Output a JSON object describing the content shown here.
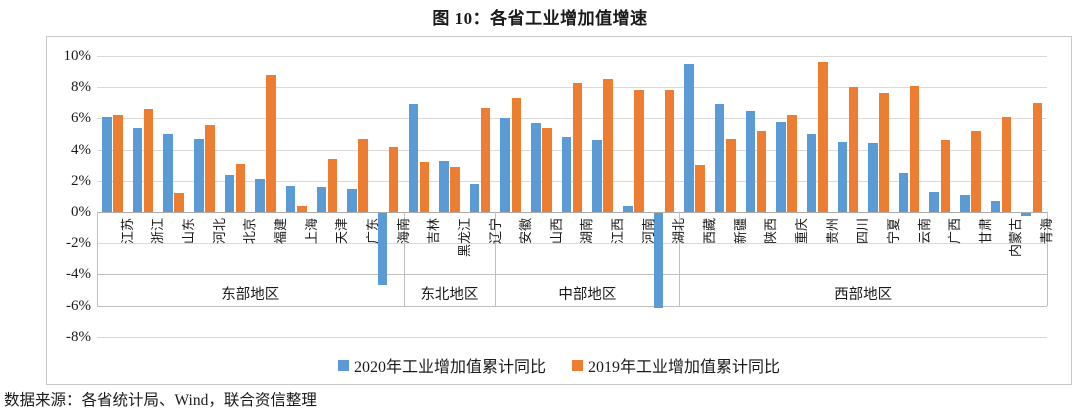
{
  "title": "图 10：各省工业增加值增速",
  "source": "数据来源：各省统计局、Wind，联合资信整理",
  "colors": {
    "series_2020": "#5B9BD5",
    "series_2019": "#ED7D31",
    "gridline": "#d9d9d9",
    "axis_line": "#ababab",
    "band_line": "#bfbfbf"
  },
  "chart_data": {
    "type": "bar",
    "title": "图 10：各省工业增加值增速",
    "xlabel": "",
    "ylabel": "",
    "ylim": [
      -8,
      10
    ],
    "grid": true,
    "legend_position": "bottom",
    "y_ticks": [
      "10%",
      "8%",
      "6%",
      "4%",
      "2%",
      "0%",
      "-2%",
      "-4%",
      "-6%",
      "-8%"
    ],
    "y_tick_values": [
      10,
      8,
      6,
      4,
      2,
      0,
      -2,
      -4,
      -6,
      -8
    ],
    "categories": [
      "江苏",
      "浙江",
      "山东",
      "河北",
      "北京",
      "福建",
      "上海",
      "天津",
      "广东",
      "海南",
      "吉林",
      "黑龙江",
      "辽宁",
      "安徽",
      "山西",
      "湖南",
      "江西",
      "河南",
      "湖北",
      "西藏",
      "新疆",
      "陕西",
      "重庆",
      "贵州",
      "四川",
      "宁夏",
      "云南",
      "广西",
      "甘肃",
      "内蒙古",
      "青海"
    ],
    "regions": [
      {
        "label": "东部地区",
        "count": 10
      },
      {
        "label": "东北地区",
        "count": 3
      },
      {
        "label": "中部地区",
        "count": 6
      },
      {
        "label": "西部地区",
        "count": 12
      }
    ],
    "series": [
      {
        "name": "2020年工业增加值累计同比",
        "color": "#5B9BD5",
        "values": [
          6.1,
          5.4,
          5.0,
          4.7,
          2.4,
          2.1,
          1.7,
          1.6,
          1.5,
          -4.6,
          6.9,
          3.3,
          1.8,
          6.0,
          5.7,
          4.8,
          4.6,
          0.4,
          -6.1,
          9.5,
          6.9,
          6.5,
          5.8,
          5.0,
          4.5,
          4.4,
          2.5,
          1.3,
          1.1,
          0.7,
          -0.2
        ]
      },
      {
        "name": "2019年工业增加值累计同比",
        "color": "#ED7D31",
        "values": [
          6.2,
          6.6,
          1.2,
          5.6,
          3.1,
          8.8,
          0.4,
          3.4,
          4.7,
          4.2,
          3.2,
          2.9,
          6.7,
          7.3,
          5.4,
          8.3,
          8.5,
          7.8,
          7.8,
          3.0,
          4.7,
          5.2,
          6.2,
          9.6,
          8.0,
          7.6,
          8.1,
          4.6,
          5.2,
          6.1,
          7.0
        ]
      }
    ]
  }
}
